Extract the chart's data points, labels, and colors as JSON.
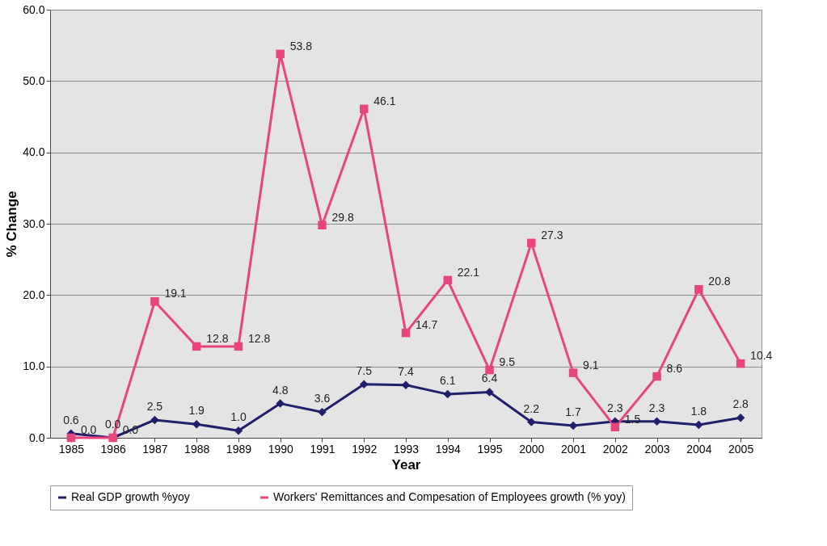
{
  "chart_data": {
    "type": "line",
    "xlabel": "Year",
    "ylabel": "% Change",
    "categories": [
      "1985",
      "1986",
      "1987",
      "1988",
      "1989",
      "1990",
      "1991",
      "1992",
      "1993",
      "1994",
      "1995",
      "2000",
      "2001",
      "2002",
      "2003",
      "2004",
      "2005"
    ],
    "series": [
      {
        "name": "Real GDP growth %yoy",
        "color": "#1f1f6b",
        "marker": "diamond",
        "values": [
          0.6,
          0.0,
          2.5,
          1.9,
          1.0,
          4.8,
          3.6,
          7.5,
          7.4,
          6.1,
          6.4,
          2.2,
          1.7,
          2.3,
          2.3,
          1.8,
          2.8
        ],
        "value_labels": [
          "0.6",
          "0.0",
          "2.5",
          "1.9",
          "1.0",
          "4.8",
          "3.6",
          "7.5",
          "7.4",
          "6.1",
          "6.4",
          "2.2",
          "1.7",
          "2.3",
          "2.3",
          "1.8",
          "2.8"
        ]
      },
      {
        "name": "Workers' Remittances and Compesation of Employees growth (% yoy)",
        "color": "#e8457f",
        "marker": "square",
        "values": [
          0.0,
          0.0,
          19.1,
          12.8,
          12.8,
          53.8,
          29.8,
          46.1,
          14.7,
          22.1,
          9.5,
          27.3,
          9.1,
          1.5,
          8.6,
          20.8,
          10.4
        ],
        "value_labels": [
          "0.0",
          "0.0",
          "19.1",
          "12.8",
          "12.8",
          "53.8",
          "29.8",
          "46.1",
          "14.7",
          "22.1",
          "9.5",
          "27.3",
          "9.1",
          "1.5",
          "8.6",
          "20.8",
          "10.4"
        ]
      }
    ],
    "ylim": [
      0,
      60
    ],
    "yticks": [
      {
        "value": 0,
        "label": "0.0"
      },
      {
        "value": 10,
        "label": "10.0"
      },
      {
        "value": 20,
        "label": "20.0"
      },
      {
        "value": 30,
        "label": "30.0"
      },
      {
        "value": 40,
        "label": "40.0"
      },
      {
        "value": 50,
        "label": "50.0"
      },
      {
        "value": 60,
        "label": "60.0"
      }
    ],
    "grid": "y",
    "legend": "bottom"
  }
}
